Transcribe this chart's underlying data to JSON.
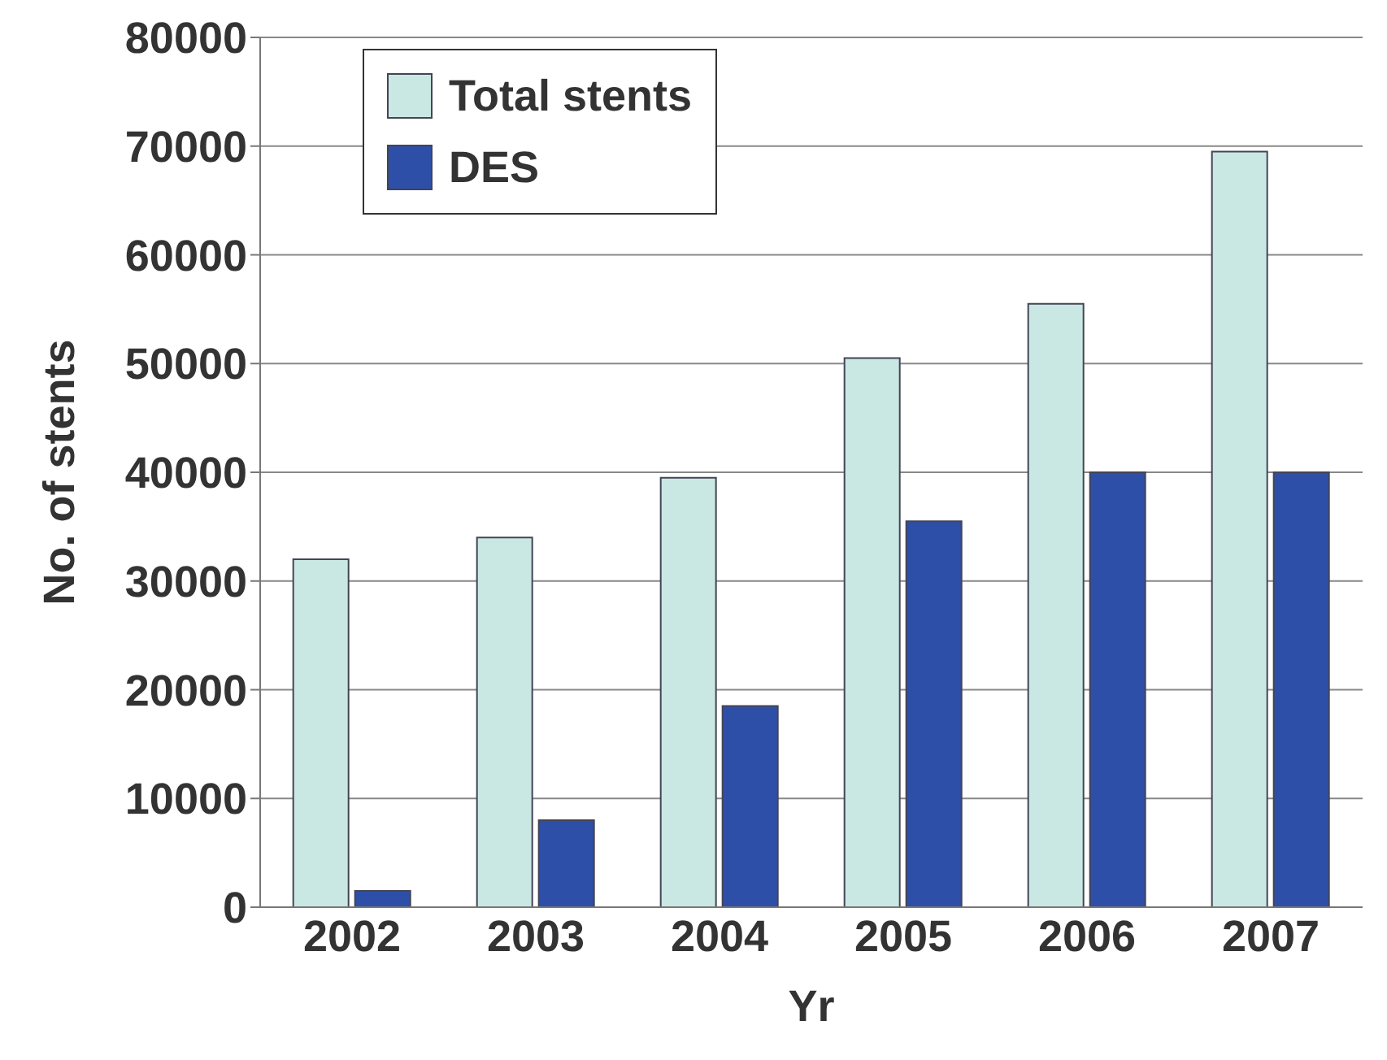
{
  "chart_data": {
    "type": "bar",
    "xlabel": "Yr",
    "ylabel": "No. of stents",
    "categories": [
      "2002",
      "2003",
      "2004",
      "2005",
      "2006",
      "2007"
    ],
    "series": [
      {
        "name": "Total stents",
        "color": "#c9e8e4",
        "values": [
          32000,
          34000,
          39500,
          50500,
          55500,
          69500
        ]
      },
      {
        "name": "DES",
        "color": "#2e4fa8",
        "values": [
          1500,
          8000,
          18500,
          35500,
          40000,
          40000
        ]
      }
    ],
    "ylim": [
      0,
      80000
    ],
    "yticks": [
      0,
      10000,
      20000,
      30000,
      40000,
      50000,
      60000,
      70000,
      80000
    ],
    "grid": "y",
    "legend": "top left"
  }
}
